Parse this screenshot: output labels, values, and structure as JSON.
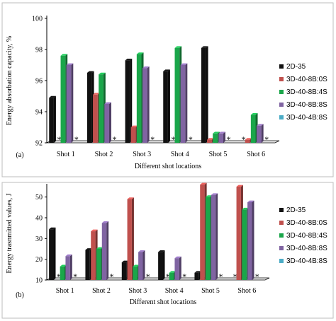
{
  "legend_colors": [
    "#111111",
    "#c0504d",
    "#1aa64a",
    "#8064a2",
    "#4bacc6"
  ],
  "missing_marker": "*",
  "chart_data": [
    {
      "type": "bar",
      "panel_label": "(a)",
      "xlabel": "Different shot locations",
      "ylabel": "Energy absorbation capacity, %",
      "ylim": [
        92,
        100
      ],
      "yticks": [
        "92",
        "94",
        "96",
        "98",
        "100"
      ],
      "categories": [
        "Shot 1",
        "Shot 2",
        "Shot 3",
        "Shot 4",
        "Shot 5",
        "Shot 6"
      ],
      "series": [
        {
          "name": "2D-35",
          "color": "#111111",
          "values": [
            94.9,
            96.5,
            97.3,
            96.6,
            98.1,
            null
          ]
        },
        {
          "name": "3D-40-8B:0S",
          "color": "#c0504d",
          "values": [
            null,
            95.1,
            93.0,
            null,
            92.2,
            92.2
          ]
        },
        {
          "name": "3D-40-8B:4S",
          "color": "#1aa64a",
          "values": [
            97.6,
            96.4,
            97.7,
            98.1,
            92.6,
            93.8
          ]
        },
        {
          "name": "3D-40-8B:8S",
          "color": "#8064a2",
          "values": [
            97.0,
            94.5,
            96.8,
            97.0,
            92.6,
            93.1
          ]
        },
        {
          "name": "3D-40-4B:8S",
          "color": "#4bacc6",
          "values": [
            null,
            null,
            null,
            null,
            null,
            null
          ]
        }
      ]
    },
    {
      "type": "bar",
      "panel_label": "(b)",
      "xlabel": "Different shot locations",
      "ylabel": "Energy trasnmitted values, J",
      "ylim": [
        10,
        55
      ],
      "yticks": [
        "10",
        "20",
        "30",
        "40",
        "50"
      ],
      "categories": [
        "Shot 1",
        "Shot 2",
        "Shot 3",
        "Shot 4",
        "Shot 5",
        "Shot 6"
      ],
      "series": [
        {
          "name": "2D-35",
          "color": "#111111",
          "values": [
            34.5,
            24.5,
            18.5,
            23.5,
            13.5,
            null
          ]
        },
        {
          "name": "3D-40-8B:0S",
          "color": "#c0504d",
          "values": [
            null,
            33.5,
            49.0,
            null,
            56.0,
            55.0
          ]
        },
        {
          "name": "3D-40-8B:4S",
          "color": "#1aa64a",
          "values": [
            16.5,
            25.0,
            16.5,
            13.5,
            50.0,
            44.0
          ]
        },
        {
          "name": "3D-40-8B:8S",
          "color": "#8064a2",
          "values": [
            21.5,
            37.5,
            23.5,
            20.5,
            51.0,
            47.5
          ]
        },
        {
          "name": "3D-40-4B:8S",
          "color": "#4bacc6",
          "values": [
            null,
            null,
            null,
            null,
            null,
            null
          ]
        }
      ]
    }
  ]
}
